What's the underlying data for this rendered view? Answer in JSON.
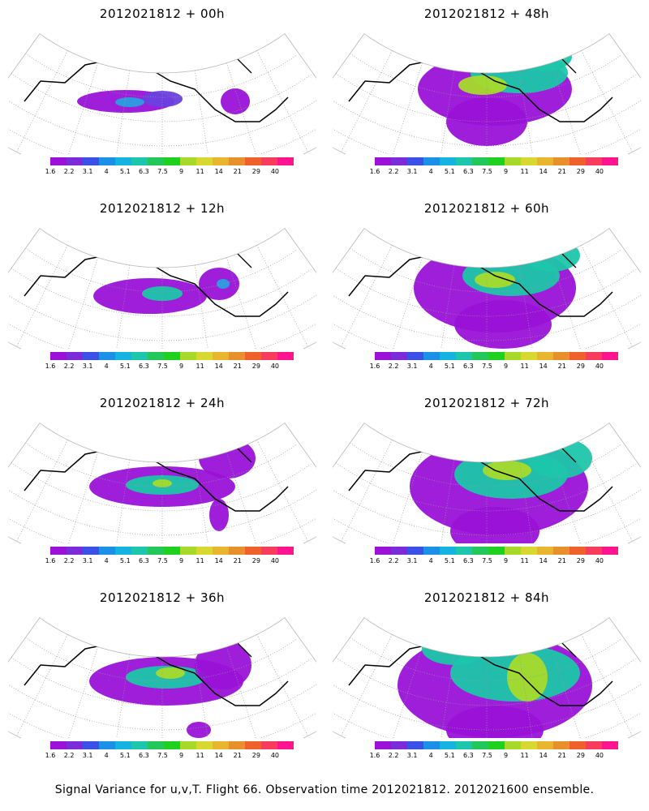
{
  "panels": [
    {
      "title": "2012021812 + 00h"
    },
    {
      "title": "2012021812 + 48h"
    },
    {
      "title": "2012021812 + 12h"
    },
    {
      "title": "2012021812 + 60h"
    },
    {
      "title": "2012021812 + 24h"
    },
    {
      "title": "2012021812 + 72h"
    },
    {
      "title": "2012021812 + 36h"
    },
    {
      "title": "2012021812 + 84h"
    }
  ],
  "colorbar": {
    "colors": [
      "#9a12d8",
      "#7b2bd8",
      "#3c50e8",
      "#1c8fe6",
      "#14b3e0",
      "#1cc6aa",
      "#22c85c",
      "#20d020",
      "#a6da2a",
      "#d8d830",
      "#e8b62c",
      "#e8902c",
      "#f0602c",
      "#f83c5c",
      "#ff1490"
    ],
    "labels": [
      "1.6",
      "2.2",
      "3.1",
      "4",
      "5.1",
      "6.3",
      "7.5",
      "9",
      "11",
      "14",
      "21",
      "29",
      "40"
    ]
  },
  "caption": "Signal Variance for u,v,T. Flight 66. Observation time 2012021812. 2012021600 ensemble."
}
